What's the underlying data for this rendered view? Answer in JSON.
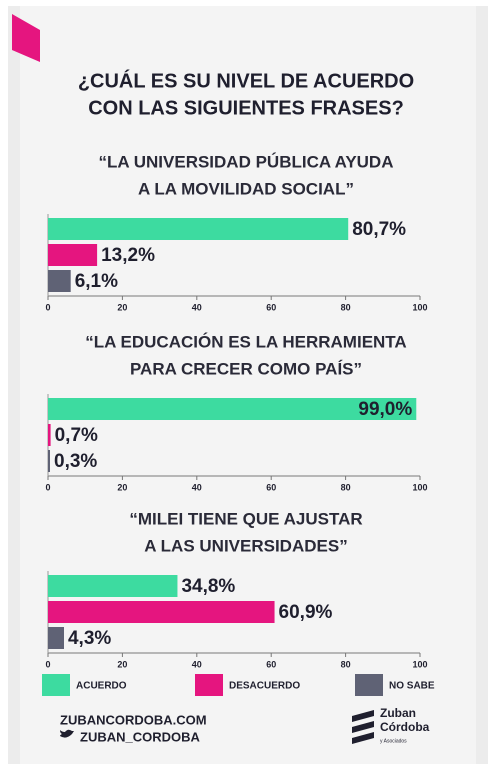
{
  "title": [
    "¿CUÁL ES SU NIVEL DE ACUERDO",
    "CON LAS SIGUIENTES FRASES?"
  ],
  "legend": [
    {
      "name": "ACUERDO",
      "color": "#3ddba0"
    },
    {
      "name": "DESACUERDO",
      "color": "#e5157f"
    },
    {
      "name": "NO SABE",
      "color": "#5f6275"
    }
  ],
  "chart_data": [
    {
      "type": "bar",
      "orientation": "horizontal",
      "title": [
        "“LA UNIVERSIDAD PÚBLICA AYUDA",
        "A LA MOVILIDAD SOCIAL”"
      ],
      "categories": [
        null,
        null,
        null
      ],
      "values": [
        80.7,
        13.2,
        6.1
      ],
      "value_labels": [
        "80,7%",
        "13,2%",
        "6,1%"
      ],
      "xlim": [
        0,
        100
      ],
      "xticks": [
        0,
        20,
        40,
        60,
        80,
        100
      ]
    },
    {
      "type": "bar",
      "orientation": "horizontal",
      "title": [
        "“LA EDUCACIÓN ES LA HERRAMIENTA",
        "PARA CRECER COMO PAÍS”"
      ],
      "categories": [
        null,
        null,
        null
      ],
      "values": [
        99.0,
        0.7,
        0.3
      ],
      "value_labels": [
        "99,0%",
        "0,7%",
        "0,3%"
      ],
      "xlim": [
        0,
        100
      ],
      "xticks": [
        0,
        20,
        40,
        60,
        80,
        100
      ]
    },
    {
      "type": "bar",
      "orientation": "horizontal",
      "title": [
        "“MILEI TIENE QUE AJUSTAR",
        "A LAS UNIVERSIDADES”"
      ],
      "categories": [
        null,
        null,
        null
      ],
      "values": [
        34.8,
        60.9,
        4.3
      ],
      "value_labels": [
        "34,8%",
        "60,9%",
        "4,3%"
      ],
      "xlim": [
        0,
        100
      ],
      "xticks": [
        0,
        20,
        40,
        60,
        80,
        100
      ]
    }
  ],
  "footer": {
    "website": "ZUBANCORDOBA.COM",
    "twitter": "ZUBAN_CORDOBA",
    "logo": [
      "Zuban",
      "Córdoba",
      "y Asociados"
    ]
  }
}
